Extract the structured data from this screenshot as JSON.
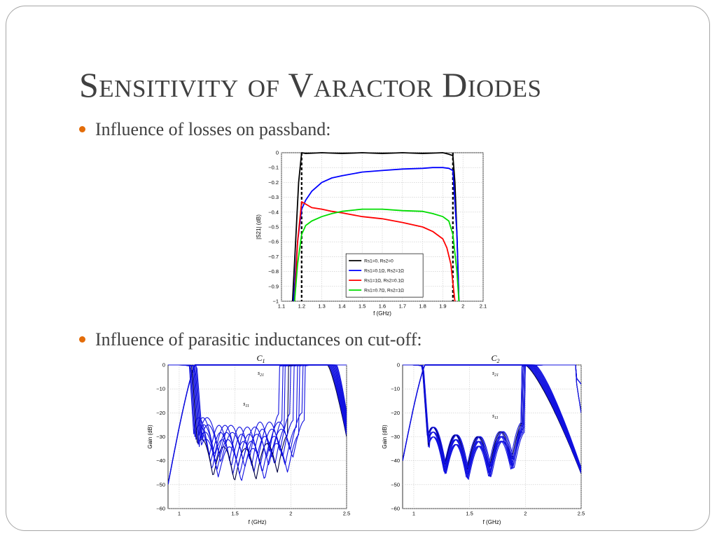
{
  "slide": {
    "title": "Sensitivity of Varactor Diodes",
    "bullet1": "Influence of losses on passband:",
    "bullet2": "Influence of parasitic inductances on cut-off:",
    "accent_color": "#e36c09",
    "text_color": "#404040"
  },
  "chart_data": [
    {
      "type": "line",
      "xlabel": "f (GHz)",
      "ylabel": "|S21| (dB)",
      "xlim": [
        1.1,
        2.1
      ],
      "ylim": [
        -1,
        0
      ],
      "xticks": [
        "1.1",
        "1.2",
        "1.3",
        "1.4",
        "1.5",
        "1.6",
        "1.7",
        "1.8",
        "1.9",
        "2",
        "2.1"
      ],
      "yticks": [
        "0",
        "−0.1",
        "−0.2",
        "−0.3",
        "−0.4",
        "−0.5",
        "−0.6",
        "−0.7",
        "−0.8",
        "−0.9",
        "−1"
      ],
      "grid": true,
      "legend_position": "bottom-right",
      "band_edges_dashed": [
        1.2,
        1.95
      ],
      "series": [
        {
          "name": "Rs1=0, Rs2=0",
          "color": "#000000",
          "x": [
            1.155,
            1.17,
            1.185,
            1.2,
            1.22,
            1.3,
            1.4,
            1.5,
            1.6,
            1.7,
            1.8,
            1.9,
            1.93,
            1.95,
            1.96,
            1.97,
            1.98
          ],
          "y": [
            -1,
            -0.6,
            -0.2,
            0,
            -0.005,
            0,
            -0.005,
            0,
            -0.005,
            0,
            -0.005,
            0,
            -0.01,
            -0.02,
            -0.2,
            -0.55,
            -1
          ]
        },
        {
          "name": "Rs1=0.1Ω, Rs2=1Ω",
          "color": "#0000ff",
          "x": [
            1.16,
            1.18,
            1.2,
            1.22,
            1.25,
            1.3,
            1.35,
            1.4,
            1.5,
            1.6,
            1.7,
            1.8,
            1.85,
            1.9,
            1.93,
            1.95,
            1.97,
            1.98
          ],
          "y": [
            -1,
            -0.6,
            -0.38,
            -0.32,
            -0.26,
            -0.2,
            -0.17,
            -0.155,
            -0.13,
            -0.12,
            -0.11,
            -0.105,
            -0.1,
            -0.1,
            -0.105,
            -0.12,
            -0.55,
            -1
          ]
        },
        {
          "name": "Rs1=1Ω, Rs2=0.1Ω",
          "color": "#ff0000",
          "x": [
            1.165,
            1.18,
            1.2,
            1.25,
            1.3,
            1.35,
            1.4,
            1.5,
            1.6,
            1.7,
            1.8,
            1.85,
            1.9,
            1.92,
            1.94,
            1.96
          ],
          "y": [
            -1,
            -0.6,
            -0.33,
            -0.37,
            -0.38,
            -0.395,
            -0.405,
            -0.43,
            -0.445,
            -0.47,
            -0.5,
            -0.53,
            -0.58,
            -0.64,
            -0.75,
            -1
          ]
        },
        {
          "name": "Rs1=0.7Ω, Rs2=1Ω",
          "color": "#00dd00",
          "x": [
            1.165,
            1.18,
            1.2,
            1.22,
            1.25,
            1.3,
            1.35,
            1.4,
            1.5,
            1.6,
            1.7,
            1.8,
            1.85,
            1.9,
            1.93,
            1.95,
            1.97,
            1.98
          ],
          "y": [
            -1,
            -0.75,
            -0.55,
            -0.49,
            -0.46,
            -0.43,
            -0.41,
            -0.395,
            -0.38,
            -0.38,
            -0.39,
            -0.395,
            -0.41,
            -0.43,
            -0.46,
            -0.55,
            -0.8,
            -1
          ]
        }
      ]
    },
    {
      "type": "line",
      "title": "C1",
      "xlabel": "f (GHz)",
      "ylabel": "Gain (dB)",
      "xlim": [
        0.9,
        2.5
      ],
      "ylim": [
        -60,
        0
      ],
      "xticks": [
        "1",
        "1.5",
        "2",
        "2.5"
      ],
      "yticks": [
        "0",
        "−10",
        "−20",
        "−30",
        "−40",
        "−50",
        "−60"
      ],
      "annotations": [
        "s21",
        "s11"
      ],
      "grid": true
    },
    {
      "type": "line",
      "title": "C2",
      "xlabel": "f (GHz)",
      "ylabel": "Gain (dB)",
      "xlim": [
        0.9,
        2.5
      ],
      "ylim": [
        -60,
        0
      ],
      "xticks": [
        "1",
        "1.5",
        "2",
        "2.5"
      ],
      "yticks": [
        "0",
        "−10",
        "−20",
        "−30",
        "−40",
        "−50",
        "−60"
      ],
      "annotations": [
        "s21",
        "s11"
      ],
      "grid": true
    }
  ]
}
